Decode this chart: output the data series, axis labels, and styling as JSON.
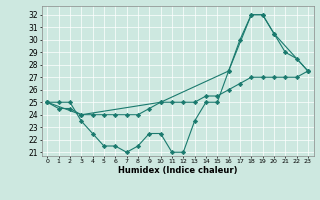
{
  "xlabel": "Humidex (Indice chaleur)",
  "bg_color": "#cde8e0",
  "line_color": "#1a7a6e",
  "xlim": [
    -0.5,
    23.5
  ],
  "ylim": [
    20.7,
    32.7
  ],
  "yticks": [
    21,
    22,
    23,
    24,
    25,
    26,
    27,
    28,
    29,
    30,
    31,
    32
  ],
  "xticks": [
    0,
    1,
    2,
    3,
    4,
    5,
    6,
    7,
    8,
    9,
    10,
    11,
    12,
    13,
    14,
    15,
    16,
    17,
    18,
    19,
    20,
    21,
    22,
    23
  ],
  "xtick_labels": [
    "0",
    "1",
    "2",
    "3",
    "4",
    "5",
    "6",
    "7",
    "8",
    "9",
    "10",
    "11",
    "12",
    "13",
    "14",
    "15",
    "16",
    "17",
    "18",
    "19",
    "20",
    "21",
    "22",
    "23"
  ],
  "series": [
    {
      "x": [
        0,
        1,
        2,
        3,
        4,
        5,
        6,
        7,
        8,
        9,
        10,
        11,
        12,
        13,
        14,
        15,
        16,
        17,
        18,
        19,
        20,
        21,
        22,
        23
      ],
      "y": [
        25.0,
        25.0,
        25.0,
        23.5,
        22.5,
        21.5,
        21.5,
        21.0,
        21.5,
        22.5,
        22.5,
        21.0,
        21.0,
        23.5,
        25.0,
        25.0,
        27.5,
        30.0,
        32.0,
        32.0,
        30.5,
        29.0,
        28.5,
        27.5
      ]
    },
    {
      "x": [
        0,
        1,
        2,
        3,
        4,
        5,
        6,
        7,
        8,
        9,
        10,
        11,
        12,
        13,
        14,
        15,
        16,
        17,
        18,
        19,
        20,
        21,
        22,
        23
      ],
      "y": [
        25.0,
        24.5,
        24.5,
        24.0,
        24.0,
        24.0,
        24.0,
        24.0,
        24.0,
        24.5,
        25.0,
        25.0,
        25.0,
        25.0,
        25.5,
        25.5,
        26.0,
        26.5,
        27.0,
        27.0,
        27.0,
        27.0,
        27.0,
        27.5
      ]
    },
    {
      "x": [
        0,
        3,
        10,
        16,
        18,
        19,
        20,
        23
      ],
      "y": [
        25.0,
        24.0,
        25.0,
        27.5,
        32.0,
        32.0,
        30.5,
        27.5
      ]
    }
  ]
}
